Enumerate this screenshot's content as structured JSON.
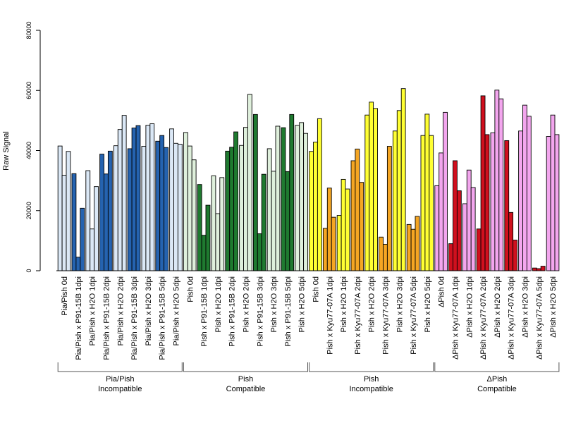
{
  "chart_data": {
    "type": "bar",
    "ylabel": "Raw Signal",
    "ylim": [
      0,
      80000
    ],
    "yticks": [
      "0",
      "20000",
      "40000",
      "60000",
      "80000"
    ],
    "bars_per_category": 3,
    "categories": [
      {
        "label": "Pia/Pish 0d",
        "values": [
          41500,
          31800,
          39700
        ],
        "fill": "#dbe8f6"
      },
      {
        "label": "Pia/Pish x P91-15B 1dpi",
        "values": [
          32300,
          4500,
          20800
        ],
        "fill": "#2563b0"
      },
      {
        "label": "Pia/Pish x H2O 1dpi",
        "values": [
          33300,
          13900,
          28000
        ],
        "fill": "#dbe8f6"
      },
      {
        "label": "Pia/Pish x P91-15B 2dpi",
        "values": [
          38800,
          32200,
          39800
        ],
        "fill": "#2563b0"
      },
      {
        "label": "Pia/Pish x H2O 2dpi",
        "values": [
          41600,
          47000,
          51700
        ],
        "fill": "#dbe8f6"
      },
      {
        "label": "Pia/Pish x P91-15B 3dpi",
        "values": [
          40600,
          47500,
          48300
        ],
        "fill": "#2563b0"
      },
      {
        "label": "Pia/Pish x H2O 3dpi",
        "values": [
          41400,
          48400,
          48900
        ],
        "fill": "#dbe8f6"
      },
      {
        "label": "Pia/Pish x P91-15B 5dpi",
        "values": [
          43100,
          45000,
          41000
        ],
        "fill": "#2563b0"
      },
      {
        "label": "Pia/Pish x H2O 5dpi",
        "values": [
          47200,
          42400,
          42100
        ],
        "fill": "#dbe8f6"
      },
      {
        "label": "Pish 0d",
        "values": [
          46000,
          41500,
          36900
        ],
        "fill": "#dff0dc"
      },
      {
        "label": "Pish x P91-15B 1dpi",
        "values": [
          28700,
          11800,
          21800
        ],
        "fill": "#1f7a30"
      },
      {
        "label": "Pish x H2O 1dpi",
        "values": [
          31600,
          19000,
          31000
        ],
        "fill": "#dff0dc"
      },
      {
        "label": "Pish x P91-15B 2dpi",
        "values": [
          39800,
          41100,
          46200
        ],
        "fill": "#1f7a30"
      },
      {
        "label": "Pish x H2O 2dpi",
        "values": [
          41700,
          47700,
          58700
        ],
        "fill": "#dff0dc"
      },
      {
        "label": "Pish x P91-15B 3dpi",
        "values": [
          52000,
          12300,
          32100
        ],
        "fill": "#1f7a30"
      },
      {
        "label": "Pish x H2O 3dpi",
        "values": [
          40600,
          33100,
          48100
        ],
        "fill": "#dff0dc"
      },
      {
        "label": "Pish x P91-15B 5dpi",
        "values": [
          47600,
          33000,
          52000
        ],
        "fill": "#1f7a30"
      },
      {
        "label": "Pish x H2O 5dpi",
        "values": [
          48400,
          49300,
          45700
        ],
        "fill": "#dff0dc"
      },
      {
        "label": "Pish 0d",
        "values": [
          39700,
          42800,
          50600
        ],
        "fill": "#ffff33"
      },
      {
        "label": "Pish x Kyu77-07A 1dpi",
        "values": [
          14100,
          27500,
          17800
        ],
        "fill": "#f5a623"
      },
      {
        "label": "Pish x H2O 1dpi",
        "values": [
          18400,
          30400,
          27200
        ],
        "fill": "#ffff33"
      },
      {
        "label": "Pish x Kyu77-07A 2dpi",
        "values": [
          36600,
          40500,
          29400
        ],
        "fill": "#f5a623"
      },
      {
        "label": "Pish x H2O 2dpi",
        "values": [
          51800,
          56100,
          54000
        ],
        "fill": "#ffff33"
      },
      {
        "label": "Pish x Kyu77-07A 3dpi",
        "values": [
          11200,
          8800,
          41400
        ],
        "fill": "#f5a623"
      },
      {
        "label": "Pish x H2O 3dpi",
        "values": [
          46500,
          53300,
          60600
        ],
        "fill": "#ffff33"
      },
      {
        "label": "Pish x Kyu77-07A 5dpi",
        "values": [
          15400,
          13800,
          18100
        ],
        "fill": "#f5a623"
      },
      {
        "label": "Pish x H2O 5dpi",
        "values": [
          45000,
          52100,
          45000
        ],
        "fill": "#ffff33"
      },
      {
        "label": "ΔPish 0d",
        "values": [
          28300,
          39200,
          52700
        ],
        "fill": "#f3a6ee"
      },
      {
        "label": "ΔPish x Kyu77-07A 1dpi",
        "values": [
          9000,
          36600,
          26600
        ],
        "fill": "#d0101e"
      },
      {
        "label": "ΔPish x H2O 1dpi",
        "values": [
          22300,
          33500,
          27700
        ],
        "fill": "#f3a6ee"
      },
      {
        "label": "ΔPish x Kyu77-07A 2dpi",
        "values": [
          13900,
          58200,
          45300
        ],
        "fill": "#d0101e"
      },
      {
        "label": "ΔPish x H2O 2dpi",
        "values": [
          45900,
          60100,
          57200
        ],
        "fill": "#f3a6ee"
      },
      {
        "label": "ΔPish x Kyu77-07A 3dpi",
        "values": [
          43300,
          19400,
          10200
        ],
        "fill": "#d0101e"
      },
      {
        "label": "ΔPish x H2O 3dpi",
        "values": [
          46500,
          55100,
          51400
        ],
        "fill": "#f3a6ee"
      },
      {
        "label": "ΔPish x Kyu77-07A 5dpi",
        "values": [
          900,
          700,
          1500
        ],
        "fill": "#d0101e"
      },
      {
        "label": "ΔPish x H2O 5dpi",
        "values": [
          44700,
          51800,
          45300
        ],
        "fill": "#f3a6ee"
      }
    ],
    "groups": [
      {
        "line1": "Pia/Pish",
        "line2": "Incompatible",
        "first": 0,
        "last": 8
      },
      {
        "line1": "Pish",
        "line2": "Compatible",
        "first": 9,
        "last": 17
      },
      {
        "line1": "Pish",
        "line2": "Incompatible",
        "first": 18,
        "last": 26
      },
      {
        "line1": "ΔPish",
        "line2": "Compatible",
        "first": 27,
        "last": 35
      }
    ]
  }
}
